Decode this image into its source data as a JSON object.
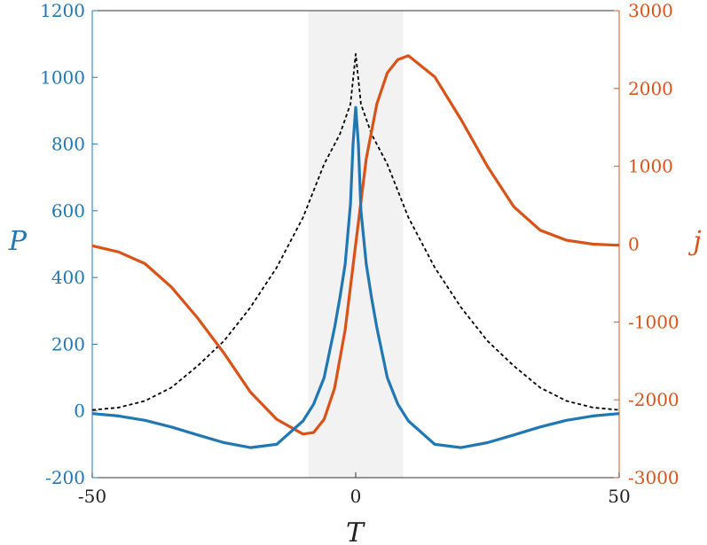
{
  "chart_data": {
    "type": "line",
    "xlabel": "T",
    "ylabel_left": "P",
    "ylabel_right": "j",
    "xlim": [
      -50,
      50
    ],
    "ylim_left": [
      -200,
      1200
    ],
    "ylim_right": [
      -3000,
      3000
    ],
    "x_ticks": [
      "-50",
      "0",
      "50"
    ],
    "y_ticks_left": [
      "-200",
      "0",
      "200",
      "400",
      "600",
      "800",
      "1000",
      "1200"
    ],
    "y_ticks_right": [
      "-3000",
      "-2000",
      "-1000",
      "0",
      "1000",
      "2000",
      "3000"
    ],
    "shaded_band": {
      "x0": -9,
      "x1": 9
    },
    "colors": {
      "left": "#1f77b4",
      "right": "#d95319",
      "band": "#f2f2f2",
      "dashed": "#000000"
    },
    "series": [
      {
        "axis": "left",
        "style": "solid",
        "color": "#1f77b4",
        "x": [
          -50,
          -45,
          -40,
          -35,
          -30,
          -25,
          -20,
          -15,
          -10,
          -8,
          -6,
          -4,
          -3,
          -2,
          -1,
          -0.5,
          0,
          0.5,
          1,
          2,
          3,
          4,
          6,
          8,
          10,
          15,
          20,
          25,
          30,
          35,
          40,
          45,
          50
        ],
        "y": [
          -8,
          -15,
          -28,
          -48,
          -72,
          -95,
          -110,
          -100,
          -30,
          20,
          100,
          250,
          340,
          440,
          620,
          800,
          910,
          800,
          600,
          440,
          340,
          250,
          100,
          20,
          -30,
          -100,
          -110,
          -95,
          -72,
          -48,
          -28,
          -15,
          -8
        ]
      },
      {
        "axis": "right",
        "style": "solid",
        "color": "#d95319",
        "x": [
          -50,
          -45,
          -40,
          -35,
          -30,
          -25,
          -20,
          -15,
          -10,
          -8,
          -6,
          -4,
          -2,
          0,
          2,
          4,
          6,
          8,
          10,
          15,
          20,
          25,
          30,
          35,
          40,
          45,
          50
        ],
        "y": [
          -20,
          -100,
          -250,
          -550,
          -950,
          -1400,
          -1900,
          -2250,
          -2440,
          -2420,
          -2250,
          -1850,
          -1100,
          0,
          1100,
          1800,
          2200,
          2370,
          2420,
          2150,
          1600,
          1000,
          480,
          180,
          50,
          0,
          -15
        ]
      },
      {
        "axis": "left",
        "style": "dashed",
        "color": "#000000",
        "x": [
          -50,
          -45,
          -40,
          -35,
          -30,
          -25,
          -20,
          -15,
          -10,
          -6,
          -3,
          -1,
          0,
          1,
          3,
          6,
          10,
          15,
          20,
          25,
          30,
          35,
          40,
          45,
          50
        ],
        "y": [
          3,
          10,
          30,
          70,
          135,
          210,
          310,
          430,
          580,
          740,
          830,
          920,
          1070,
          920,
          830,
          740,
          580,
          430,
          310,
          210,
          135,
          70,
          30,
          10,
          3
        ]
      }
    ]
  }
}
